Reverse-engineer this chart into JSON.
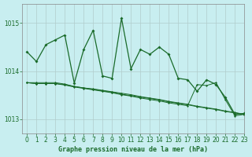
{
  "title": "Graphe pression niveau de la mer (hPa)",
  "bg_color": "#c8eef0",
  "grid_color": "#b0cccc",
  "line_color": "#1a6b2a",
  "ylim": [
    1012.7,
    1015.4
  ],
  "xlim": [
    -0.5,
    23
  ],
  "yticks": [
    1013,
    1014,
    1015
  ],
  "xticks": [
    0,
    1,
    2,
    3,
    4,
    5,
    6,
    7,
    8,
    9,
    10,
    11,
    12,
    13,
    14,
    15,
    16,
    17,
    18,
    19,
    20,
    21,
    22,
    23
  ],
  "series1": [
    1014.4,
    1014.2,
    1014.55,
    1014.65,
    1014.75,
    1013.75,
    1014.45,
    1014.85,
    1013.9,
    1013.85,
    1015.1,
    1014.05,
    1014.45,
    1014.35,
    1014.5,
    1014.35,
    1013.85,
    1013.82,
    1013.58,
    1013.82,
    1013.72,
    1013.45,
    1013.1,
    1013.12
  ],
  "series2": [
    1013.76,
    1013.76,
    1013.76,
    1013.76,
    1013.73,
    1013.68,
    1013.65,
    1013.63,
    1013.6,
    1013.57,
    1013.54,
    1013.51,
    1013.47,
    1013.44,
    1013.41,
    1013.37,
    1013.34,
    1013.31,
    1013.27,
    1013.24,
    1013.21,
    1013.17,
    1013.14,
    1013.1
  ],
  "series3": [
    1013.76,
    1013.74,
    1013.74,
    1013.74,
    1013.72,
    1013.68,
    1013.65,
    1013.62,
    1013.59,
    1013.56,
    1013.52,
    1013.49,
    1013.46,
    1013.43,
    1013.4,
    1013.36,
    1013.33,
    1013.3,
    1013.26,
    1013.23,
    1013.2,
    1013.16,
    1013.13,
    1013.1
  ],
  "series4": [
    1013.76,
    1013.74,
    1013.74,
    1013.74,
    1013.71,
    1013.67,
    1013.64,
    1013.61,
    1013.58,
    1013.55,
    1013.51,
    1013.48,
    1013.44,
    1013.41,
    1013.38,
    1013.34,
    1013.31,
    1013.28,
    1013.72,
    1013.7,
    1013.76,
    1013.4,
    1013.07,
    1013.1
  ]
}
